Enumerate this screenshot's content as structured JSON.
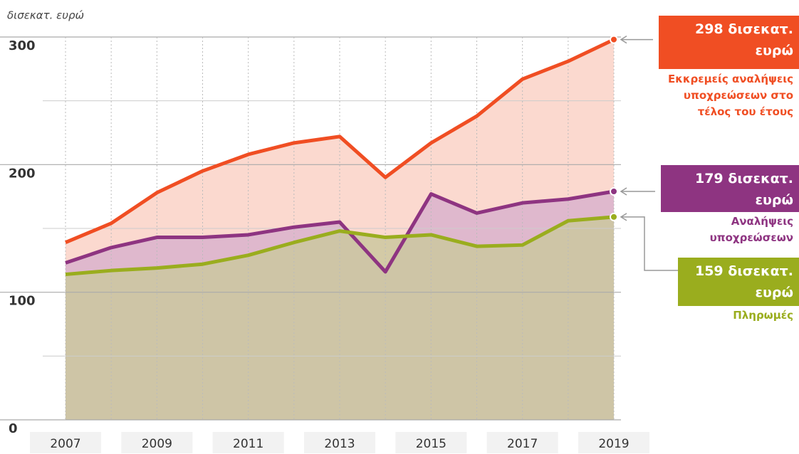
{
  "chart_data": {
    "type": "area",
    "y_label": "δισεκατ. ευρώ",
    "categories": [
      "2007",
      null,
      "2009",
      null,
      "2011",
      null,
      "2013",
      null,
      "2015",
      null,
      "2017",
      null,
      "2019"
    ],
    "series": [
      {
        "name": "Εκκρεμείς αναλήψεις υποχρεώσεων στο τέλος του έτους",
        "color": "#f04e23",
        "fill": "#fbd9cf",
        "values": [
          139,
          154,
          178,
          195,
          208,
          217,
          222,
          190,
          217,
          238,
          267,
          281,
          298
        ],
        "value_labels": [
          null,
          null,
          null,
          null,
          null,
          null,
          null,
          null,
          null,
          null,
          null,
          null,
          "298 δισεκατ. ευρώ"
        ]
      },
      {
        "name": "Αναλήψεις υποχρεώσεων",
        "color": "#8e3481",
        "fill": "#d9b2cc",
        "values": [
          123,
          135,
          143,
          143,
          145,
          151,
          155,
          116,
          177,
          162,
          170,
          173,
          179
        ],
        "value_labels": [
          null,
          null,
          null,
          null,
          null,
          null,
          null,
          null,
          null,
          null,
          null,
          null,
          "179 δισεκατ. ευρώ"
        ]
      },
      {
        "name": "Πληρωμές",
        "color": "#9aad1e",
        "fill": "#cbc79f",
        "values": [
          114,
          117,
          119,
          122,
          129,
          139,
          148,
          143,
          145,
          136,
          137,
          156,
          159
        ],
        "value_labels": [
          null,
          null,
          null,
          null,
          null,
          null,
          null,
          null,
          null,
          null,
          null,
          null,
          "159 δισεκατ. ευρώ"
        ]
      }
    ],
    "ylim": [
      0,
      300
    ],
    "yticks": [
      0,
      100,
      200,
      300
    ],
    "minor_yticks": [
      50,
      150,
      250
    ],
    "grid": true
  }
}
